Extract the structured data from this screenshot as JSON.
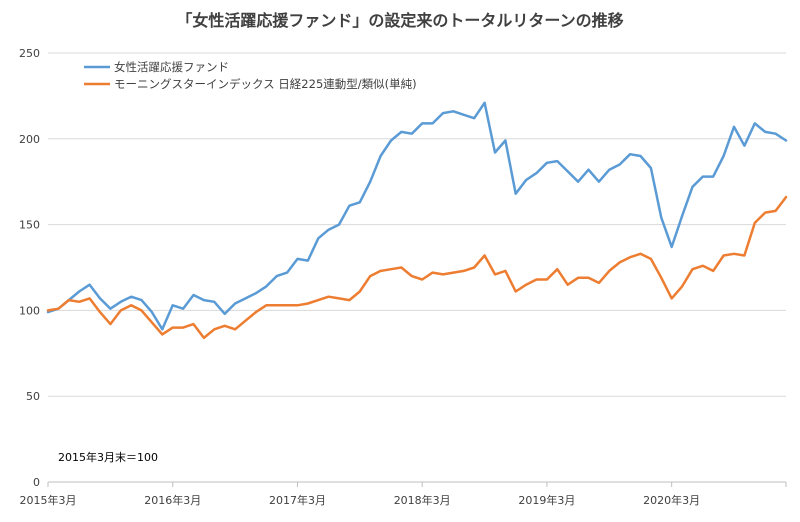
{
  "chart_data": {
    "type": "line",
    "title": "「女性活躍応援ファンド」の設定来のトータルリターンの推移",
    "xlabel": "",
    "ylabel": "",
    "ylim": [
      0,
      250
    ],
    "y_ticks": [
      "0",
      "50",
      "100",
      "150",
      "200",
      "250"
    ],
    "x_tick_labels": [
      "2015年3月",
      "2016年3月",
      "2017年3月",
      "2018年3月",
      "2019年3月",
      "2020年3月"
    ],
    "grid": true,
    "legend_position": "top-left",
    "annotation": "2015年3月末＝100",
    "series": [
      {
        "name": "女性活躍応援ファンド",
        "color": "#5b9bd5",
        "values": [
          99,
          101,
          106,
          111,
          115,
          107,
          101,
          105,
          108,
          106,
          99,
          89,
          103,
          101,
          109,
          106,
          105,
          98,
          104,
          107,
          110,
          114,
          120,
          122,
          130,
          129,
          142,
          147,
          150,
          161,
          163,
          175,
          190,
          199,
          204,
          203,
          209,
          209,
          215,
          216,
          214,
          212,
          221,
          192,
          199,
          168,
          176,
          180,
          186,
          187,
          181,
          175,
          182,
          175,
          182,
          185,
          191,
          190,
          183,
          154,
          137,
          155,
          172,
          178,
          178,
          190,
          207,
          196,
          209,
          204,
          203,
          199
        ]
      },
      {
        "name": "モーニングスターインデックス 日経225連動型/類似(単純)",
        "color": "#ed7d31",
        "values": [
          100,
          101,
          106,
          105,
          107,
          99,
          92,
          100,
          103,
          100,
          93,
          86,
          90,
          90,
          92,
          84,
          89,
          91,
          89,
          94,
          99,
          103,
          103,
          103,
          103,
          104,
          106,
          108,
          107,
          106,
          111,
          120,
          123,
          124,
          125,
          120,
          118,
          122,
          121,
          122,
          123,
          125,
          132,
          121,
          123,
          111,
          115,
          118,
          118,
          124,
          115,
          119,
          119,
          116,
          123,
          128,
          131,
          133,
          130,
          119,
          107,
          114,
          124,
          126,
          123,
          132,
          133,
          132,
          151,
          157,
          158,
          166
        ]
      }
    ]
  }
}
